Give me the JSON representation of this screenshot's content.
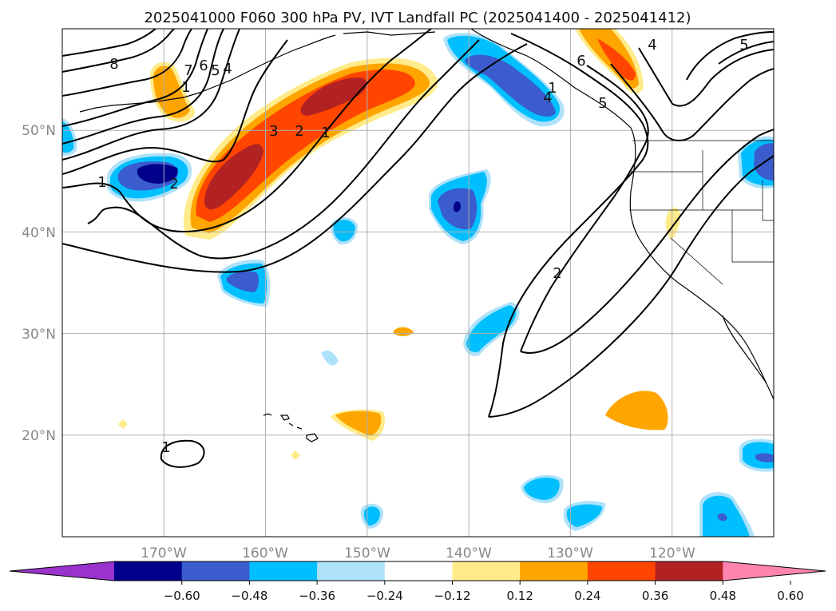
{
  "title": "2025041000 F060 300 hPa PV, IVT Landfall PC (2025041400 - 2025041412)",
  "map": {
    "lon_range": [
      -180,
      -110
    ],
    "lat_range": [
      10,
      60
    ],
    "lon_ticks": [
      {
        "label": "170°W",
        "value": -170
      },
      {
        "label": "160°W",
        "value": -160
      },
      {
        "label": "150°W",
        "value": -150
      },
      {
        "label": "140°W",
        "value": -140
      },
      {
        "label": "130°W",
        "value": -130
      },
      {
        "label": "120°W",
        "value": -120
      }
    ],
    "lat_ticks": [
      {
        "label": "50°N",
        "value": 50
      },
      {
        "label": "40°N",
        "value": 40
      },
      {
        "label": "30°N",
        "value": 30
      },
      {
        "label": "20°N",
        "value": 20
      }
    ],
    "gridlines": true,
    "contour_labels": [
      "8",
      "7",
      "6",
      "5",
      "4",
      "3",
      "2",
      "1",
      "1",
      "2",
      "6",
      "5",
      "4",
      "1",
      "4",
      "5",
      "1",
      "2",
      "1"
    ]
  },
  "colorbar": {
    "ticks": [
      "−0.60",
      "−0.48",
      "−0.36",
      "−0.24",
      "−0.12",
      "0.12",
      "0.24",
      "0.36",
      "0.48",
      "0.60"
    ],
    "colors": [
      "#9933cc",
      "#00008b",
      "#3a5ccc",
      "#00bfff",
      "#aee2fa",
      "#ffffff",
      "#ffeb8a",
      "#ffa500",
      "#ff4500",
      "#b22222",
      "#ff85b0"
    ],
    "extend": "both"
  }
}
